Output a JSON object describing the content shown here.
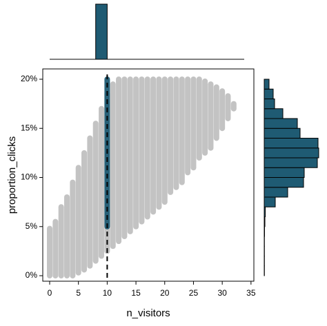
{
  "chart_data": {
    "type": "scatter",
    "x_label": "n_visitors",
    "y_label": "proportion_clicks",
    "xlim": [
      -1.2,
      35.5
    ],
    "ylim": [
      -0.56,
      21.05
    ],
    "xticks": [
      0,
      5,
      10,
      15,
      20,
      25,
      30,
      35
    ],
    "yticks": [
      {
        "value": 0,
        "label": "0%"
      },
      {
        "value": 5,
        "label": "5%"
      },
      {
        "value": 10,
        "label": "10%"
      },
      {
        "value": 15,
        "label": "15%"
      },
      {
        "value": 20,
        "label": "20%"
      }
    ],
    "series": [
      {
        "color": "#bdbdbd",
        "x": [
          0,
          1,
          2,
          3,
          4,
          5,
          6,
          7,
          8,
          9,
          10,
          11,
          12,
          13,
          14,
          15,
          16,
          17,
          18,
          19,
          20,
          21,
          22,
          23,
          24,
          25,
          26,
          27,
          28,
          29,
          30,
          31,
          32
        ],
        "ymin": [
          0,
          0,
          0,
          0,
          0,
          0.3,
          0.6,
          1,
          1.5,
          2,
          2.5,
          3,
          3.5,
          4,
          4.5,
          5,
          5.5,
          6,
          6.5,
          7,
          7.5,
          8.5,
          9,
          9.5,
          10.5,
          11,
          12,
          12.5,
          13,
          14,
          15,
          16,
          17
        ],
        "ymax": [
          4.8,
          5.5,
          7,
          8,
          9.5,
          11,
          12.5,
          14,
          15.5,
          17,
          18.5,
          19.5,
          20,
          20,
          20,
          20,
          20,
          20,
          20,
          20,
          20,
          20,
          20,
          20,
          20,
          20,
          20,
          19.8,
          19.5,
          19.2,
          18.8,
          18.3,
          17.5
        ]
      },
      {
        "color": "#1f5b73",
        "x": [
          10
        ],
        "ymin": [
          5
        ],
        "ymax": [
          20
        ]
      }
    ],
    "vline": 10,
    "top_histogram": {
      "color": "#1f5b73",
      "bins": [
        8,
        10
      ],
      "counts": [
        1
      ],
      "ylim": [
        0,
        1
      ]
    },
    "right_histogram": {
      "color": "#1f5b73",
      "bins": [
        0,
        1,
        2,
        3,
        4,
        5,
        6,
        7,
        8,
        9,
        10,
        11,
        12,
        13,
        14,
        15,
        16,
        17,
        18,
        19,
        20
      ],
      "counts": [
        0.3,
        0.3,
        0.3,
        0.3,
        0.5,
        1,
        1.5,
        16,
        34,
        57,
        58,
        77,
        79,
        78,
        52,
        48,
        27,
        15,
        13,
        7,
        4
      ],
      "xlim": [
        0,
        80
      ]
    }
  }
}
